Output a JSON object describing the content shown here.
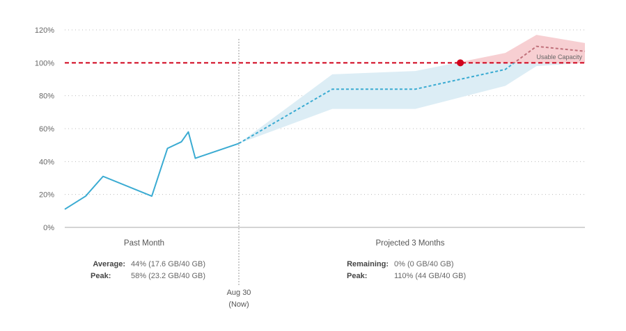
{
  "chart_data": {
    "type": "line",
    "y_ticks": [
      "120%",
      "100%",
      "80%",
      "60%",
      "40%",
      "20%",
      "0%"
    ],
    "ylim": [
      0,
      120
    ],
    "grid": "horizontal dotted",
    "usable_capacity": {
      "value": 100,
      "label": "Usable Capacity",
      "color": "#d0021b"
    },
    "now_marker": {
      "line1": "Aug 30",
      "line2": "(Now)"
    },
    "past": {
      "label": "Past Month",
      "color": "#3aabd2",
      "x": [
        0,
        0.12,
        0.22,
        0.5,
        0.59,
        0.67,
        0.71,
        0.75,
        1.0
      ],
      "y": [
        11,
        19,
        31,
        19,
        48,
        52,
        58,
        42,
        51
      ],
      "stats": [
        {
          "key": "Average:",
          "value": "44% (17.6 GB/40 GB)"
        },
        {
          "key": "Peak:",
          "value": "58% (23.2 GB/40 GB)"
        }
      ]
    },
    "projected": {
      "label": "Projected 3 Months",
      "line_color": "#3aabd2",
      "band_color": "#dcedf5",
      "over_color": "#f7cfd2",
      "over_line_color": "#c0707a",
      "x": [
        0,
        0.27,
        0.51,
        0.77,
        0.86,
        1.0
      ],
      "y": [
        51,
        84,
        84,
        96,
        110,
        107
      ],
      "band_upper": [
        51,
        93,
        95,
        106,
        117,
        112
      ],
      "band_lower": [
        51,
        72,
        72,
        86,
        98,
        100
      ],
      "crossing": {
        "x": 0.64,
        "y": 100,
        "color": "#d0021b"
      },
      "stats": [
        {
          "key": "Remaining:",
          "value": "0% (0 GB/40 GB)"
        },
        {
          "key": "Peak:",
          "value": "110% (44 GB/40 GB)"
        }
      ]
    }
  }
}
